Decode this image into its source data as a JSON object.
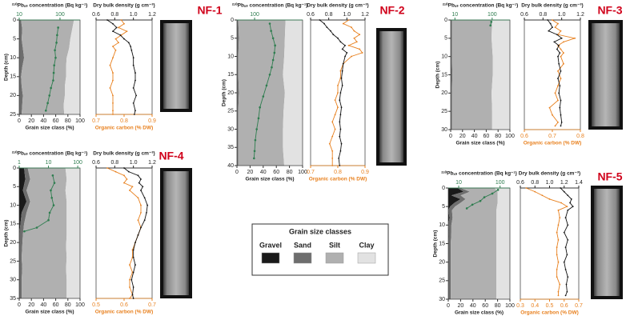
{
  "chart_data": [
    {
      "type": "core-profile",
      "title": "NF-1",
      "depth_label": "Depth (cm)",
      "depth_lim": [
        0,
        25
      ],
      "depth_ticks": [
        0,
        5,
        10,
        15,
        20,
        25
      ],
      "grain": {
        "xlabel": "Grain size class (%)",
        "xlim": [
          0,
          100
        ],
        "xticks": [
          0,
          20,
          40,
          60,
          80,
          100
        ],
        "depths": [
          0,
          2.5,
          5,
          7.5,
          10,
          12.5,
          15,
          17.5,
          20,
          22.5,
          25
        ],
        "series": [
          {
            "values": [
              0,
              0,
              0,
              0,
              0,
              0,
              0,
              0,
              0,
              0,
              0
            ]
          },
          {
            "values": [
              3,
              5,
              4,
              6,
              8,
              5,
              3,
              4,
              6,
              5,
              4
            ]
          },
          {
            "values": [
              87,
              82,
              80,
              76,
              70,
              72,
              74,
              71,
              69,
              68,
              70
            ]
          },
          {
            "values": [
              10,
              13,
              16,
              18,
              22,
              23,
              23,
              25,
              25,
              27,
              26
            ]
          }
        ]
      },
      "pb": {
        "label": "²¹⁰Pbₓₛ concentration (Bq kg⁻¹)",
        "log": true,
        "xlim": [
          10,
          310
        ],
        "xticks": [
          10,
          100
        ],
        "color": "#2e7d4f",
        "depths": [
          2,
          4,
          6,
          8,
          10,
          12,
          14,
          16,
          18,
          20,
          22,
          24
        ],
        "values": [
          90,
          85,
          82,
          75,
          78,
          72,
          70,
          68,
          60,
          55,
          50,
          45
        ]
      },
      "profile_depths": [
        0,
        1,
        2,
        3,
        4,
        5,
        6,
        7,
        8,
        10,
        12,
        14,
        16,
        18,
        20,
        22,
        24,
        25
      ],
      "dbd": {
        "label": "Dry bulk density (g cm⁻³)",
        "xlim": [
          0.6,
          1.2
        ],
        "xticks": [
          0.6,
          0.8,
          {
            "value": 1,
            "label": "1.0"
          },
          1.2
        ],
        "color": "#111111",
        "values": [
          0.72,
          0.78,
          0.82,
          0.78,
          0.86,
          0.9,
          0.95,
          0.97,
          0.98,
          1.0,
          1.0,
          1.02,
          1.02,
          1.0,
          1.03,
          1.0,
          1.02,
          1.01
        ]
      },
      "oc": {
        "label": "Organic carbon (% DW)",
        "xlim": [
          0.7,
          0.9
        ],
        "xticks": [
          0.7,
          0.8,
          0.9
        ],
        "color": "#e8801e",
        "values": [
          0.79,
          0.8,
          0.78,
          0.81,
          0.79,
          0.77,
          0.78,
          0.76,
          0.77,
          0.76,
          0.75,
          0.76,
          0.76,
          0.75,
          0.76,
          0.76,
          0.76,
          0.76
        ]
      }
    },
    {
      "type": "core-profile",
      "title": "NF-2",
      "depth_label": "Depth (cm)",
      "depth_lim": [
        0,
        40
      ],
      "depth_ticks": [
        0,
        5,
        10,
        15,
        20,
        25,
        30,
        35,
        40
      ],
      "grain": {
        "xlabel": "Grain size class (%)",
        "xlim": [
          0,
          100
        ],
        "xticks": [
          0,
          20,
          40,
          60,
          80,
          100
        ],
        "depths": [
          0,
          5,
          10,
          15,
          20,
          25,
          30,
          35,
          40
        ],
        "series": [
          {
            "values": [
              0,
              0,
              0,
              0,
              0,
              0,
              0,
              0,
              0
            ]
          },
          {
            "values": [
              2,
              3,
              2,
              2,
              3,
              2,
              2,
              2,
              2
            ]
          },
          {
            "values": [
              72,
              70,
              70,
              68,
              70,
              69,
              68,
              68,
              70
            ]
          },
          {
            "values": [
              26,
              27,
              28,
              30,
              27,
              29,
              30,
              30,
              28
            ]
          }
        ]
      },
      "pb": {
        "label": "²¹⁰Pbₓₛ concentration (Bq kg⁻¹)",
        "log": true,
        "xlim": [
          29,
          2900
        ],
        "xticks": [
          100
        ],
        "color": "#2e7d4f",
        "depths": [
          1,
          3,
          5,
          7,
          9,
          11,
          13,
          15,
          18,
          21,
          24,
          27,
          30,
          33,
          36,
          38
        ],
        "values": [
          290,
          318,
          366,
          421,
          402,
          366,
          333,
          290,
          231,
          183,
          145,
          132,
          116,
          105,
          100,
          96
        ]
      },
      "profile_depths": [
        0,
        1,
        2,
        3,
        4,
        5,
        6,
        7,
        8,
        9,
        10,
        12,
        14,
        16,
        18,
        20,
        22,
        24,
        26,
        28,
        30,
        32,
        34,
        36,
        38,
        40
      ],
      "dbd": {
        "label": "Dry bulk density (g cm⁻³)",
        "xlim": [
          0.6,
          1.2
        ],
        "xticks": [
          0.6,
          0.8,
          {
            "value": 1,
            "label": "1.0"
          },
          1.2
        ],
        "color": "#111111",
        "values": [
          0.7,
          0.75,
          0.78,
          0.82,
          0.85,
          0.9,
          0.93,
          0.98,
          0.95,
          1.0,
          0.98,
          0.96,
          0.95,
          0.94,
          0.95,
          0.93,
          0.92,
          0.94,
          0.93,
          0.92,
          0.93,
          0.92,
          0.94,
          0.93,
          0.91,
          0.92
        ]
      },
      "oc": {
        "label": "Organic carbon (% DW)",
        "xlim": [
          0.7,
          0.9
        ],
        "xticks": [
          0.7,
          0.8,
          0.9
        ],
        "color": "#e8801e",
        "values": [
          0.84,
          0.82,
          0.85,
          0.86,
          0.88,
          0.86,
          0.87,
          0.84,
          0.88,
          0.89,
          0.85,
          0.82,
          0.81,
          0.81,
          0.8,
          0.8,
          0.79,
          0.8,
          0.79,
          0.78,
          0.79,
          0.78,
          0.77,
          0.78,
          0.78,
          0.78
        ]
      }
    },
    {
      "type": "core-profile",
      "title": "NF-3",
      "depth_label": "Depth (cm)",
      "depth_lim": [
        0,
        30
      ],
      "depth_ticks": [
        0,
        5,
        10,
        15,
        20,
        25,
        30
      ],
      "grain": {
        "xlabel": "Grain size class (%)",
        "xlim": [
          0,
          100
        ],
        "xticks": [
          0,
          20,
          40,
          60,
          80,
          100
        ],
        "depths": [
          0,
          5,
          10,
          15,
          20,
          25,
          30
        ],
        "series": [
          {
            "values": [
              0,
              0,
              0,
              0,
              0,
              0,
              0
            ]
          },
          {
            "values": [
              2,
              2,
              2,
              3,
              2,
              2,
              2
            ]
          },
          {
            "values": [
              68,
              67,
              69,
              68,
              67,
              68,
              68
            ]
          },
          {
            "values": [
              30,
              31,
              29,
              29,
              31,
              30,
              30
            ]
          }
        ]
      },
      "pb": {
        "label": "²¹⁰Pbₓₛ concentration (Bq kg⁻¹)",
        "log": true,
        "xlim": [
          7.7,
          300
        ],
        "xticks": [
          10,
          100
        ],
        "color": "#2e7d4f",
        "depths": [
          0.5,
          1.5
        ],
        "values": [
          95,
          90
        ]
      },
      "profile_depths": [
        0,
        1,
        2,
        3,
        4,
        5,
        6,
        7,
        8,
        9,
        10,
        12,
        14,
        16,
        18,
        20,
        22,
        24,
        26,
        28,
        29
      ],
      "dbd": {
        "label": "Dry bulk density (g cm⁻³)",
        "xlim": [
          0.6,
          1.2
        ],
        "xticks": [
          0.6,
          0.8,
          {
            "value": 1,
            "label": "1.0"
          },
          1.2
        ],
        "color": "#111111",
        "values": [
          0.85,
          0.88,
          0.9,
          0.86,
          0.95,
          1.0,
          0.92,
          0.97,
          0.95,
          0.98,
          0.96,
          0.97,
          0.99,
          0.96,
          0.98,
          0.97,
          0.99,
          0.98,
          0.99,
          1.0,
          0.99
        ]
      },
      "oc": {
        "label": "Organic carbon (% DW)",
        "xlim": [
          0.6,
          0.8
        ],
        "xticks": [
          0.6,
          0.7,
          0.8
        ],
        "color": "#e8801e",
        "values": [
          0.7,
          0.72,
          0.71,
          0.73,
          0.72,
          0.78,
          0.74,
          0.72,
          0.73,
          0.74,
          0.73,
          0.74,
          0.72,
          0.73,
          0.72,
          0.71,
          0.72,
          0.69,
          0.7,
          0.72,
          0.71
        ]
      }
    },
    {
      "type": "core-profile",
      "title": "NF-4",
      "depth_label": "Depth (cm)",
      "depth_lim": [
        0,
        35
      ],
      "depth_ticks": [
        0,
        5,
        10,
        15,
        20,
        25,
        30,
        35
      ],
      "grain": {
        "xlabel": "Grain size class (%)",
        "xlim": [
          0,
          100
        ],
        "xticks": [
          0,
          20,
          40,
          60,
          80,
          100
        ],
        "depths": [
          0,
          3,
          6,
          9,
          12,
          15,
          18,
          21,
          24,
          27,
          30,
          33,
          35
        ],
        "series": [
          {
            "values": [
              8,
              10,
              6,
              12,
              4,
              2,
              0,
              0,
              0,
              0,
              0,
              0,
              0
            ]
          },
          {
            "values": [
              6,
              8,
              6,
              6,
              8,
              6,
              6,
              5,
              4,
              5,
              4,
              4,
              4
            ]
          },
          {
            "values": [
              62,
              60,
              64,
              60,
              66,
              70,
              72,
              72,
              74,
              72,
              74,
              74,
              74
            ]
          },
          {
            "values": [
              24,
              22,
              24,
              22,
              22,
              22,
              22,
              23,
              22,
              23,
              22,
              22,
              22
            ]
          }
        ]
      },
      "pb": {
        "label": "²¹⁰Pbₓₛ concentration (Bq kg⁻¹)",
        "log": true,
        "xlim": [
          1,
          120
        ],
        "xticks": [
          1,
          10,
          100
        ],
        "color": "#2e7d4f",
        "depths": [
          2,
          4,
          6,
          8,
          10,
          12,
          14,
          16,
          17
        ],
        "values": [
          14,
          16,
          12,
          13,
          15,
          11,
          10,
          4,
          1.5
        ]
      },
      "profile_depths": [
        0,
        1,
        2,
        3,
        4,
        5,
        6,
        8,
        10,
        12,
        14,
        16,
        18,
        20,
        22,
        24,
        26,
        28,
        30,
        32,
        34,
        35
      ],
      "dbd": {
        "label": "Dry bulk density (g cm⁻³)",
        "xlim": [
          0.6,
          1.2
        ],
        "xticks": [
          0.6,
          0.8,
          {
            "value": 1,
            "label": "1.0"
          },
          1.2
        ],
        "color": "#111111",
        "values": [
          0.9,
          0.95,
          1.05,
          1.08,
          1.06,
          1.1,
          1.08,
          1.12,
          1.15,
          1.14,
          1.12,
          1.08,
          1.05,
          1.02,
          1.0,
          1.0,
          1.02,
          1.0,
          0.98,
          1.0,
          0.99,
          1.0
        ]
      },
      "oc": {
        "label": "Organic carbon (% DW)",
        "xlim": [
          0.5,
          0.7
        ],
        "xticks": [
          0.5,
          0.6,
          0.7
        ],
        "color": "#e8801e",
        "values": [
          0.54,
          0.57,
          0.6,
          0.61,
          0.6,
          0.63,
          0.62,
          0.65,
          0.66,
          0.66,
          0.65,
          0.66,
          0.65,
          0.64,
          0.63,
          0.63,
          0.62,
          0.63,
          0.62,
          0.62,
          0.63,
          0.62
        ]
      }
    },
    {
      "type": "core-profile",
      "title": "NF-5",
      "depth_label": "Depth (cm)",
      "depth_lim": [
        0,
        30
      ],
      "depth_ticks": [
        0,
        5,
        10,
        15,
        20,
        25,
        30
      ],
      "grain": {
        "xlabel": "Grain size class (%)",
        "xlim": [
          0,
          100
        ],
        "xticks": [
          0,
          20,
          40,
          60,
          80,
          100
        ],
        "depths": [
          0,
          1,
          2,
          3,
          4,
          5,
          6,
          8,
          10,
          12,
          15,
          18,
          21,
          24,
          27,
          30
        ],
        "series": [
          {
            "values": [
              15,
              25,
              5,
              20,
              10,
              3,
              0,
              2,
              0,
              1,
              0,
              0,
              0,
              0,
              0,
              0
            ]
          },
          {
            "values": [
              5,
              10,
              15,
              8,
              10,
              8,
              6,
              5,
              5,
              4,
              4,
              4,
              4,
              4,
              4,
              4
            ]
          },
          {
            "values": [
              55,
              45,
              60,
              52,
              60,
              68,
              72,
              71,
              73,
              73,
              74,
              74,
              74,
              74,
              74,
              74
            ]
          },
          {
            "values": [
              25,
              20,
              20,
              20,
              20,
              21,
              22,
              22,
              22,
              22,
              22,
              22,
              22,
              22,
              22,
              22
            ]
          }
        ]
      },
      "pb": {
        "label": "²¹⁰Pbₓₛ concentration (Bq kg⁻¹)",
        "log": true,
        "xlim": [
          5.6,
          173
        ],
        "xticks": [
          10,
          100
        ],
        "color": "#2e7d4f",
        "depths": [
          0.5,
          1.5,
          2.5,
          3.5,
          4.5,
          5.5
        ],
        "values": [
          89,
          65,
          41.7,
          33.3,
          21.4,
          15.7
        ]
      },
      "profile_depths": [
        0,
        1,
        2,
        3,
        4,
        5,
        6,
        8,
        10,
        12,
        14,
        16,
        18,
        20,
        22,
        24,
        26,
        28,
        29
      ],
      "dbd": {
        "label": "Dry bulk density (g cm⁻³)",
        "xlim": [
          0.6,
          1.4
        ],
        "xticks": [
          0.6,
          0.8,
          {
            "value": 1,
            "label": "1.0"
          },
          1.2,
          1.4
        ],
        "color": "#111111",
        "values": [
          1.15,
          1.2,
          1.25,
          1.3,
          1.28,
          1.32,
          1.25,
          1.22,
          1.25,
          1.2,
          1.25,
          1.22,
          1.24,
          1.2,
          1.22,
          1.25,
          1.23,
          1.24,
          1.22
        ]
      },
      "oc": {
        "label": "Organic carbon (% DW)",
        "xlim": [
          0.3,
          0.7
        ],
        "xticks": [
          0.3,
          0.4,
          0.5,
          0.6,
          0.7
        ],
        "color": "#e8801e",
        "values": [
          0.34,
          0.4,
          0.45,
          0.5,
          0.58,
          0.62,
          0.56,
          0.57,
          0.56,
          0.55,
          0.56,
          0.55,
          0.55,
          0.56,
          0.55,
          0.55,
          0.57,
          0.56,
          0.56
        ]
      }
    }
  ],
  "legend": {
    "title": "Grain size classes",
    "items": [
      {
        "name": "Gravel",
        "color": "#1a1a1a"
      },
      {
        "name": "Sand",
        "color": "#6e6e6e"
      },
      {
        "name": "Silt",
        "color": "#b0b0b0"
      },
      {
        "name": "Clay",
        "color": "#e2e2e2"
      }
    ]
  }
}
